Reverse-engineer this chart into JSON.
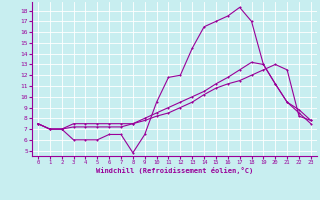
{
  "xlabel": "Windchill (Refroidissement éolien,°C)",
  "bg_color": "#c8eef0",
  "line_color": "#990099",
  "grid_color": "#ffffff",
  "xlim": [
    -0.5,
    23.5
  ],
  "ylim": [
    4.5,
    18.8
  ],
  "xticks": [
    0,
    1,
    2,
    3,
    4,
    5,
    6,
    7,
    8,
    9,
    10,
    11,
    12,
    13,
    14,
    15,
    16,
    17,
    18,
    19,
    20,
    21,
    22,
    23
  ],
  "yticks": [
    5,
    6,
    7,
    8,
    9,
    10,
    11,
    12,
    13,
    14,
    15,
    16,
    17,
    18
  ],
  "line1_x": [
    0,
    1,
    2,
    3,
    4,
    5,
    6,
    7,
    8,
    9,
    10,
    11,
    12,
    13,
    14,
    15,
    16,
    17,
    18,
    19,
    20,
    21,
    22,
    23
  ],
  "line1_y": [
    7.5,
    7.0,
    7.0,
    6.0,
    6.0,
    6.0,
    6.5,
    6.5,
    4.8,
    6.5,
    9.5,
    11.8,
    12.0,
    14.5,
    16.5,
    17.0,
    17.5,
    18.3,
    17.0,
    13.0,
    11.2,
    9.5,
    8.5,
    7.5
  ],
  "line2_x": [
    0,
    1,
    2,
    3,
    4,
    5,
    6,
    7,
    8,
    9,
    10,
    11,
    12,
    13,
    14,
    15,
    16,
    17,
    18,
    19,
    20,
    21,
    22,
    23
  ],
  "line2_y": [
    7.5,
    7.0,
    7.0,
    7.5,
    7.5,
    7.5,
    7.5,
    7.5,
    7.5,
    8.0,
    8.5,
    9.0,
    9.5,
    10.0,
    10.5,
    11.2,
    11.8,
    12.5,
    13.2,
    13.0,
    11.2,
    9.5,
    8.8,
    7.8
  ],
  "line3_x": [
    0,
    1,
    2,
    3,
    4,
    5,
    6,
    7,
    8,
    9,
    10,
    11,
    12,
    13,
    14,
    15,
    16,
    17,
    18,
    19,
    20,
    21,
    22,
    23
  ],
  "line3_y": [
    7.5,
    7.0,
    7.0,
    7.2,
    7.2,
    7.2,
    7.2,
    7.2,
    7.5,
    7.8,
    8.2,
    8.5,
    9.0,
    9.5,
    10.2,
    10.8,
    11.2,
    11.5,
    12.0,
    12.5,
    13.0,
    12.5,
    8.2,
    7.8
  ]
}
